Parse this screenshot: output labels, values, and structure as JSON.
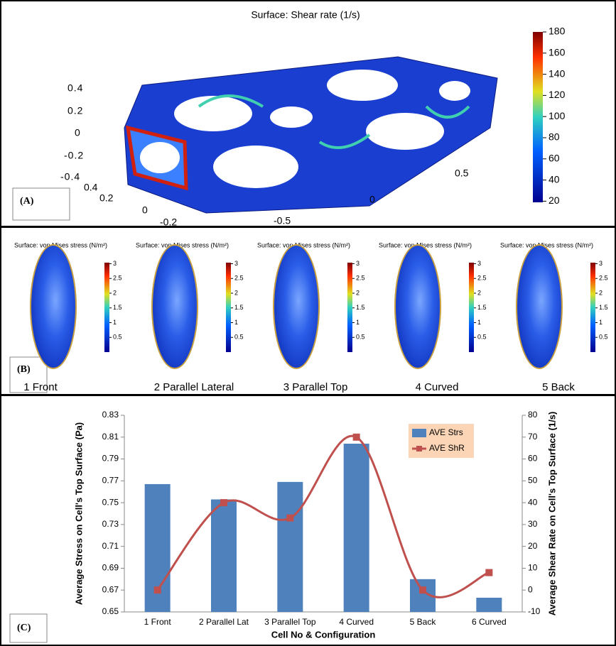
{
  "panel_a": {
    "label": "(A)",
    "title": "Surface: Shear rate (1/s)",
    "colorbar_ticks": [
      180,
      160,
      140,
      120,
      100,
      80,
      60,
      40,
      20
    ],
    "z_ticks": [
      "0.4",
      "0.2",
      "0",
      "-0.2",
      "-0.4"
    ],
    "y_ticks": [
      "0.4",
      "0.2",
      "0",
      "-0.2"
    ],
    "x_ticks": [
      "-0.5",
      "0",
      "0.5"
    ]
  },
  "panel_b": {
    "label": "(B)",
    "colorbar_ticks": [
      3,
      2.5,
      2,
      1.5,
      1,
      0.5
    ],
    "cells": [
      {
        "title": "Surface: von Mises stress (N/m²)",
        "label": "1 Front"
      },
      {
        "title": "Surface: von Mises stress (N/m²)",
        "label": "2 Parallel Lateral"
      },
      {
        "title": "Surface: von Mises stress (N/m²)",
        "label": "3 Parallel Top"
      },
      {
        "title": "Surface: von Mises stress (N/m²)",
        "label": "4 Curved"
      },
      {
        "title": "Surface: von Mises stress (N/m²)",
        "label": "5 Back"
      }
    ]
  },
  "chart_data": {
    "type": "bar",
    "panel_label": "(C)",
    "x_label": "Cell No & Configuration",
    "y_label": "Average Stress on Cell's Top Surface (Pa)",
    "y2_label": "Average Shear Rate on Cell's Top Surface (1/s)",
    "categories": [
      "1 Front",
      "2 Parallel Lat",
      "3 Parallel Top",
      "4 Curved",
      "5 Back",
      "6 Curved"
    ],
    "series": [
      {
        "name": "AVE Strs",
        "color": "#4f81bd",
        "values": [
          0.767,
          0.753,
          0.769,
          0.804,
          0.68,
          0.663
        ]
      },
      {
        "name": "AVE ShR",
        "color": "#c0504d",
        "type": "line",
        "axis": "y2",
        "values": [
          0,
          40,
          33,
          70,
          0,
          8
        ]
      }
    ],
    "ylim": [
      0.65,
      0.83
    ],
    "yticks": [
      0.65,
      0.67,
      0.69,
      0.71,
      0.73,
      0.75,
      0.77,
      0.79,
      0.81,
      0.83
    ],
    "y2lim": [
      -10,
      80
    ],
    "y2ticks": [
      -10,
      0,
      10,
      20,
      30,
      40,
      50,
      60,
      70,
      80
    ],
    "grid": false,
    "legend": "upper right"
  }
}
